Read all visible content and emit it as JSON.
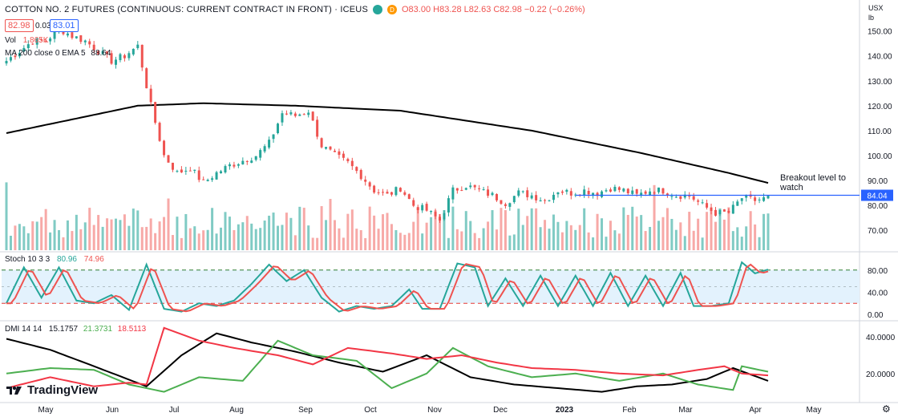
{
  "header": {
    "title": "COTTON NO. 2 FUTURES (CONTINUOUS: CURRENT CONTRACT IN FRONT) · ICEUS",
    "badge_letter": "D",
    "ohlc": "O83.00 H83.28 L82.63 C82.98 −0.22 (−0.26%)",
    "bid": "82.98",
    "spread": "0.03",
    "ask": "83.01",
    "currency": "USX",
    "unit": "lb"
  },
  "legends": {
    "vol": "Vol",
    "vol_value": "1.865K",
    "ma": "MA 200 close 0 EMA 5",
    "ma_value": "88.64",
    "stoch": "Stoch 10 3 3",
    "stoch_k": "80.96",
    "stoch_d": "74.96",
    "dmi": "DMI 14 14",
    "dmi_adx": "15.1757",
    "dmi_plus": "21.3731",
    "dmi_minus": "18.5113"
  },
  "annotation": {
    "text_line1": "Breakout level to",
    "text_line2": "watch",
    "level_label": "84.04"
  },
  "logo": "TradingView",
  "colors": {
    "up": "#26a69a",
    "down": "#ef5350",
    "ma": "#000000",
    "level": "#2962ff",
    "stoch_k": "#26a69a",
    "stoch_d": "#ef5350",
    "dmi_plus": "#4caf50",
    "dmi_minus": "#f23645",
    "dmi_adx": "#000000"
  },
  "chart_data": [
    {
      "type": "candlestick",
      "panel": "price",
      "ylim": [
        62,
        156
      ],
      "yticks": [
        70,
        80,
        90,
        100,
        110,
        120,
        130,
        140,
        150
      ],
      "ytick_labels": [
        "70.00",
        "80.00",
        "90.00",
        "100.00",
        "110.00",
        "120.00",
        "130.00",
        "140.00",
        "150.00"
      ],
      "xlabels": [
        "May",
        "Jun",
        "Jul",
        "Aug",
        "Sep",
        "Oct",
        "Nov",
        "Dec",
        "2023",
        "Feb",
        "Mar",
        "Apr",
        "May"
      ],
      "close_path": [
        [
          0,
          138
        ],
        [
          3,
          142
        ],
        [
          6,
          146
        ],
        [
          9,
          146
        ],
        [
          12,
          151
        ],
        [
          15,
          148
        ],
        [
          18,
          146
        ],
        [
          21,
          142
        ],
        [
          24,
          138
        ],
        [
          27,
          140
        ],
        [
          30,
          144
        ],
        [
          33,
          120
        ],
        [
          36,
          100
        ],
        [
          39,
          93
        ],
        [
          42,
          95
        ],
        [
          45,
          89
        ],
        [
          48,
          93
        ],
        [
          51,
          96
        ],
        [
          54,
          98
        ],
        [
          57,
          100
        ],
        [
          60,
          105
        ],
        [
          63,
          117
        ],
        [
          66,
          116
        ],
        [
          69,
          118
        ],
        [
          72,
          104
        ],
        [
          75,
          100
        ],
        [
          78,
          97
        ],
        [
          81,
          92
        ],
        [
          84,
          86
        ],
        [
          87,
          84
        ],
        [
          90,
          87
        ],
        [
          93,
          80
        ],
        [
          96,
          78
        ],
        [
          99,
          74
        ],
        [
          102,
          86
        ],
        [
          105,
          88
        ],
        [
          108,
          86
        ],
        [
          111,
          84
        ],
        [
          114,
          81
        ],
        [
          117,
          85
        ],
        [
          120,
          84
        ],
        [
          123,
          82
        ],
        [
          126,
          86
        ],
        [
          129,
          85
        ],
        [
          132,
          86
        ],
        [
          135,
          85
        ],
        [
          138,
          87
        ],
        [
          141,
          86
        ],
        [
          144,
          84
        ],
        [
          147,
          86
        ],
        [
          150,
          86
        ],
        [
          153,
          84
        ],
        [
          156,
          84
        ],
        [
          159,
          80
        ],
        [
          162,
          77
        ],
        [
          165,
          77
        ],
        [
          168,
          83
        ],
        [
          171,
          82
        ],
        [
          174,
          83
        ]
      ],
      "ma200_path": [
        [
          0,
          109
        ],
        [
          30,
          120
        ],
        [
          45,
          121
        ],
        [
          66,
          120
        ],
        [
          90,
          118
        ],
        [
          120,
          110
        ],
        [
          145,
          101
        ],
        [
          165,
          93
        ],
        [
          174,
          89
        ]
      ],
      "breakout_level": 84.04
    },
    {
      "type": "bar",
      "panel": "volume",
      "series": [
        {
          "name": "Vol",
          "values": "volume by bar, colored by candle direction"
        }
      ]
    },
    {
      "type": "line",
      "panel": "stochastic",
      "ylim": [
        0,
        100
      ],
      "yticks": [
        0,
        40,
        80
      ],
      "ytick_labels": [
        "0.00",
        "40.00",
        "80.00"
      ],
      "bands": [
        20,
        50,
        80
      ],
      "turning_points": [
        [
          0,
          20
        ],
        [
          4,
          85
        ],
        [
          8,
          30
        ],
        [
          12,
          85
        ],
        [
          16,
          25
        ],
        [
          20,
          20
        ],
        [
          24,
          35
        ],
        [
          28,
          8
        ],
        [
          32,
          90
        ],
        [
          36,
          10
        ],
        [
          40,
          5
        ],
        [
          44,
          20
        ],
        [
          48,
          15
        ],
        [
          52,
          25
        ],
        [
          56,
          55
        ],
        [
          60,
          90
        ],
        [
          64,
          60
        ],
        [
          68,
          80
        ],
        [
          72,
          30
        ],
        [
          76,
          5
        ],
        [
          80,
          15
        ],
        [
          84,
          10
        ],
        [
          88,
          15
        ],
        [
          92,
          45
        ],
        [
          95,
          10
        ],
        [
          99,
          10
        ],
        [
          103,
          92
        ],
        [
          107,
          85
        ],
        [
          110,
          15
        ],
        [
          114,
          65
        ],
        [
          118,
          15
        ],
        [
          122,
          70
        ],
        [
          126,
          15
        ],
        [
          130,
          70
        ],
        [
          134,
          15
        ],
        [
          138,
          75
        ],
        [
          142,
          15
        ],
        [
          146,
          70
        ],
        [
          150,
          15
        ],
        [
          154,
          75
        ],
        [
          157,
          15
        ],
        [
          161,
          15
        ],
        [
          165,
          20
        ],
        [
          168,
          94
        ],
        [
          171,
          74
        ],
        [
          174,
          81
        ]
      ]
    },
    {
      "type": "line",
      "panel": "dmi",
      "ylim": [
        5,
        48
      ],
      "yticks": [
        20,
        40
      ],
      "ytick_labels": [
        "20.0000",
        "40.0000"
      ],
      "series": [
        {
          "name": "ADX",
          "points": [
            [
              0,
              39
            ],
            [
              10,
              33
            ],
            [
              20,
              24
            ],
            [
              32,
              13
            ],
            [
              40,
              30
            ],
            [
              48,
              42
            ],
            [
              56,
              37
            ],
            [
              66,
              32
            ],
            [
              76,
              26
            ],
            [
              86,
              21
            ],
            [
              96,
              30
            ],
            [
              106,
              18
            ],
            [
              116,
              14
            ],
            [
              126,
              12
            ],
            [
              136,
              10
            ],
            [
              144,
              13
            ],
            [
              152,
              14
            ],
            [
              160,
              17
            ],
            [
              166,
              23
            ],
            [
              174,
              16
            ]
          ]
        },
        {
          "name": "+DI",
          "points": [
            [
              0,
              20
            ],
            [
              10,
              23
            ],
            [
              20,
              22
            ],
            [
              28,
              14
            ],
            [
              36,
              10
            ],
            [
              44,
              18
            ],
            [
              54,
              16
            ],
            [
              62,
              38
            ],
            [
              70,
              30
            ],
            [
              80,
              27
            ],
            [
              88,
              12
            ],
            [
              96,
              20
            ],
            [
              102,
              34
            ],
            [
              110,
              24
            ],
            [
              120,
              18
            ],
            [
              130,
              20
            ],
            [
              140,
              16
            ],
            [
              150,
              20
            ],
            [
              158,
              14
            ],
            [
              166,
              11
            ],
            [
              168,
              24
            ],
            [
              174,
              21
            ]
          ]
        },
        {
          "name": "−DI",
          "points": [
            [
              0,
              12
            ],
            [
              10,
              18
            ],
            [
              20,
              13
            ],
            [
              28,
              15
            ],
            [
              32,
              14
            ],
            [
              36,
              45
            ],
            [
              44,
              38
            ],
            [
              52,
              34
            ],
            [
              62,
              30
            ],
            [
              70,
              25
            ],
            [
              78,
              34
            ],
            [
              88,
              31
            ],
            [
              96,
              28
            ],
            [
              104,
              30
            ],
            [
              112,
              26
            ],
            [
              120,
              23
            ],
            [
              130,
              22
            ],
            [
              140,
              20
            ],
            [
              150,
              19
            ],
            [
              158,
              22
            ],
            [
              164,
              24
            ],
            [
              168,
              20
            ],
            [
              174,
              19
            ]
          ]
        }
      ]
    }
  ]
}
